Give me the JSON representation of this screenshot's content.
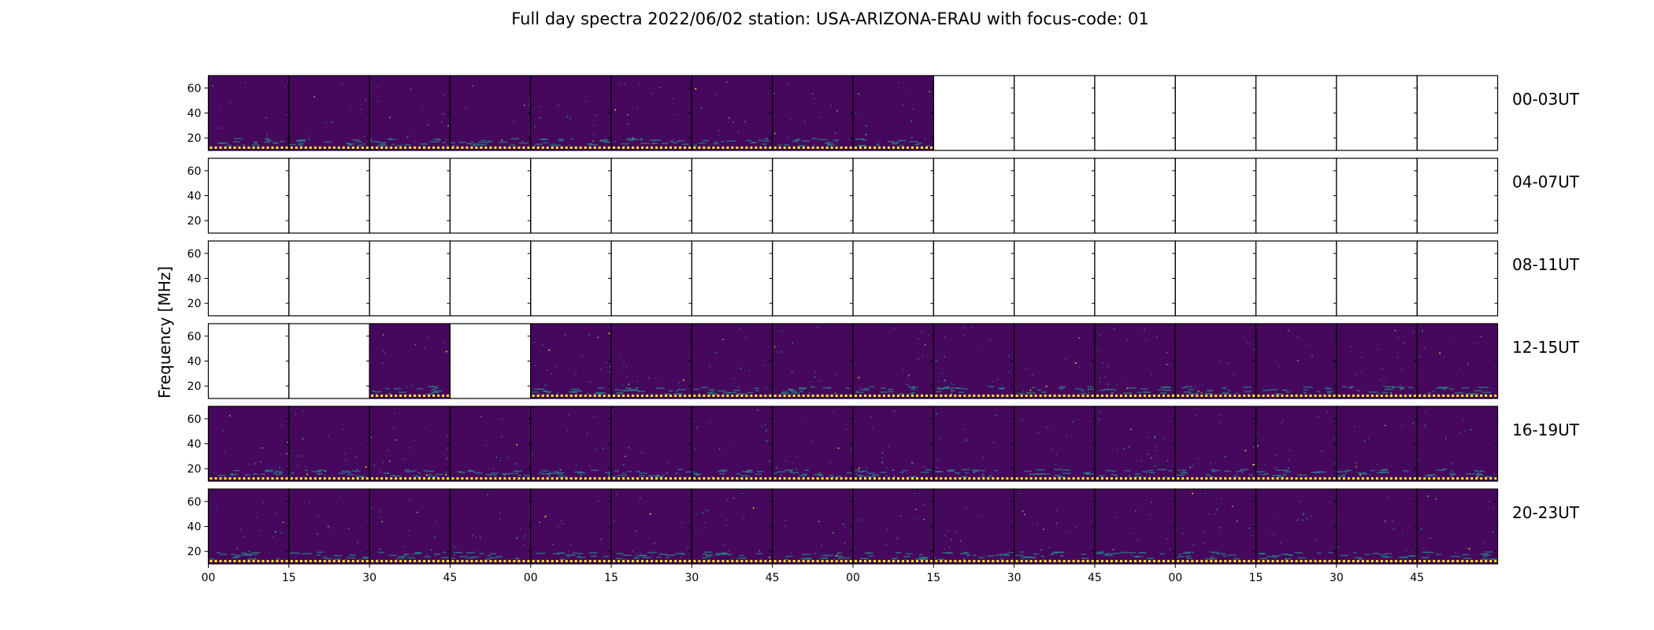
{
  "chart_data": {
    "type": "heatmap",
    "title": "Full day spectra 2022/06/02 station: USA-ARIZONA-ERAU with focus-code: 01",
    "ylabel": "Frequency [MHz]",
    "xlabel": "",
    "ylim": [
      10,
      70
    ],
    "y_ticks": [
      "20",
      "40",
      "60"
    ],
    "x_tick_labels": [
      "00",
      "15",
      "30",
      "45",
      "00",
      "15",
      "30",
      "45",
      "00",
      "15",
      "30",
      "45",
      "00",
      "15",
      "30",
      "45"
    ],
    "panel_minutes": 15,
    "colormap": [
      "#440154",
      "#3b528b",
      "#21918c",
      "#5ec962",
      "#fde725"
    ],
    "background_color": "#46085c",
    "rows": [
      {
        "label": "00-03UT",
        "panels_with_data": [
          0,
          1,
          2,
          3,
          4,
          5,
          6,
          7,
          8
        ]
      },
      {
        "label": "04-07UT",
        "panels_with_data": []
      },
      {
        "label": "08-11UT",
        "panels_with_data": []
      },
      {
        "label": "12-15UT",
        "panels_with_data": [
          2,
          4,
          5,
          6,
          7,
          8,
          9,
          10,
          11,
          12,
          13,
          14,
          15
        ]
      },
      {
        "label": "16-19UT",
        "panels_with_data": [
          0,
          1,
          2,
          3,
          4,
          5,
          6,
          7,
          8,
          9,
          10,
          11,
          12,
          13,
          14,
          15
        ]
      },
      {
        "label": "20-23UT",
        "panels_with_data": [
          0,
          1,
          2,
          3,
          4,
          5,
          6,
          7,
          8,
          9,
          10,
          11,
          12,
          13,
          14,
          15
        ]
      }
    ]
  }
}
